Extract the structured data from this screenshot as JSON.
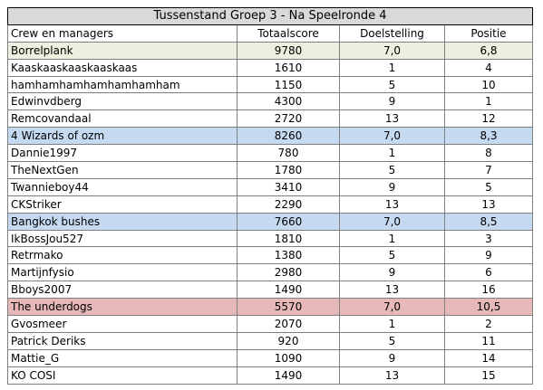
{
  "title": "Tussenstand Groep 3 - Na Speelronde 4",
  "headers": {
    "name": "Crew en managers",
    "total": "Totaalscore",
    "target": "Doelstelling",
    "position": "Positie"
  },
  "colors": {
    "borrelplank": "#ebf1de",
    "4_wizards_of_ozm": "#c5d9f1",
    "bangkok_bushes": "#c5d9f1",
    "the_underdogs": "#e6b8b7",
    "title_bg": "#d9d9d9"
  },
  "crews": [
    {
      "name": "Borrelplank",
      "total": "9780",
      "target": "7,0",
      "position": "6,8",
      "color": "green",
      "members": [
        {
          "name": "Kaaskaaskaaskaaskaas",
          "total": "1610",
          "target": "1",
          "position": "4"
        },
        {
          "name": "hamhamhamhamhamhamham",
          "total": "1150",
          "target": "5",
          "position": "10"
        },
        {
          "name": "Edwinvdberg",
          "total": "4300",
          "target": "9",
          "position": "1"
        },
        {
          "name": "Remcovandaal",
          "total": "2720",
          "target": "13",
          "position": "12"
        }
      ]
    },
    {
      "name": "4 Wizards of ozm",
      "total": "8260",
      "target": "7,0",
      "position": "8,3",
      "color": "blue",
      "members": [
        {
          "name": "Dannie1997",
          "total": "780",
          "target": "1",
          "position": "8"
        },
        {
          "name": "TheNextGen",
          "total": "1780",
          "target": "5",
          "position": "7"
        },
        {
          "name": "Twannieboy44",
          "total": "3410",
          "target": "9",
          "position": "5"
        },
        {
          "name": "CKStriker",
          "total": "2290",
          "target": "13",
          "position": "13"
        }
      ]
    },
    {
      "name": "Bangkok bushes",
      "total": "7660",
      "target": "7,0",
      "position": "8,5",
      "color": "blue",
      "members": [
        {
          "name": "IkBossJou527",
          "total": "1810",
          "target": "1",
          "position": "3"
        },
        {
          "name": "Retrmako",
          "total": "1380",
          "target": "5",
          "position": "9"
        },
        {
          "name": "Martijnfysio",
          "total": "2980",
          "target": "9",
          "position": "6"
        },
        {
          "name": "Bboys2007",
          "total": "1490",
          "target": "13",
          "position": "16"
        }
      ]
    },
    {
      "name": "The underdogs",
      "total": "5570",
      "target": "7,0",
      "position": "10,5",
      "color": "red",
      "members": [
        {
          "name": "Gvosmeer",
          "total": "2070",
          "target": "1",
          "position": "2"
        },
        {
          "name": "Patrick Deriks",
          "total": "920",
          "target": "5",
          "position": "11"
        },
        {
          "name": "Mattie_G",
          "total": "1090",
          "target": "9",
          "position": "14"
        },
        {
          "name": "KO COSI",
          "total": "1490",
          "target": "13",
          "position": "15"
        }
      ]
    }
  ]
}
